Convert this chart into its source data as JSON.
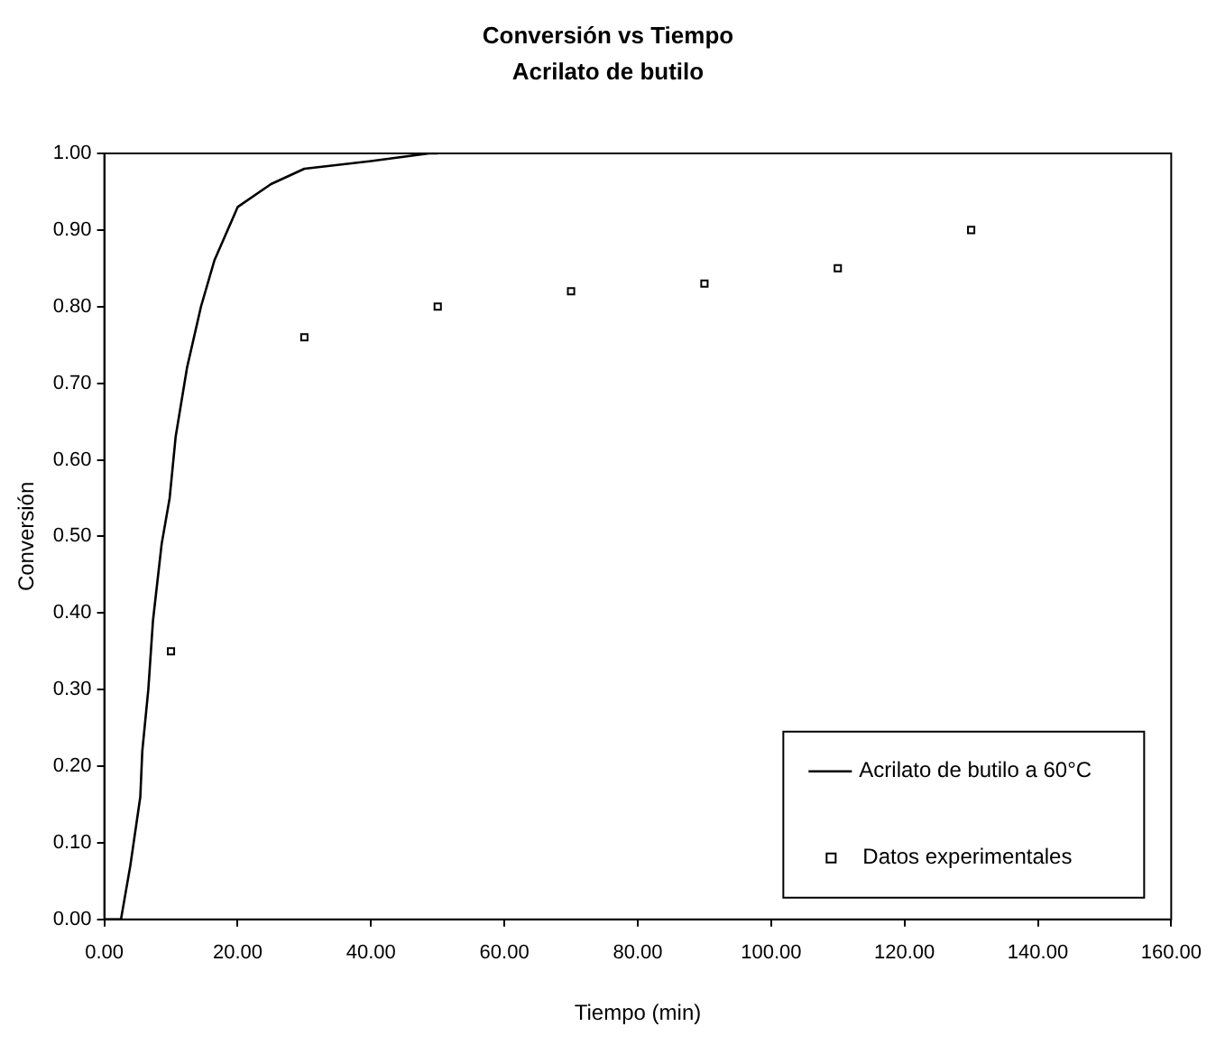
{
  "chart_data": {
    "type": "line",
    "title": "Conversión vs Tiempo",
    "subtitle": "Acrilato de butilo",
    "xlabel": "Tiempo (min)",
    "ylabel": "Conversión",
    "xlim": [
      0,
      160
    ],
    "ylim": [
      0,
      1
    ],
    "xticks": [
      {
        "value": 0,
        "label": "0.00"
      },
      {
        "value": 20,
        "label": "20.00"
      },
      {
        "value": 40,
        "label": "40.00"
      },
      {
        "value": 60,
        "label": "60.00"
      },
      {
        "value": 80,
        "label": "80.00"
      },
      {
        "value": 100,
        "label": "100.00"
      },
      {
        "value": 120,
        "label": "120.00"
      },
      {
        "value": 140,
        "label": "140.00"
      },
      {
        "value": 160,
        "label": "160.00"
      }
    ],
    "yticks": [
      {
        "value": 0,
        "label": "0.00"
      },
      {
        "value": 0.1,
        "label": "0.10"
      },
      {
        "value": 0.2,
        "label": "0.20"
      },
      {
        "value": 0.3,
        "label": "0.30"
      },
      {
        "value": 0.4,
        "label": "0.40"
      },
      {
        "value": 0.5,
        "label": "0.50"
      },
      {
        "value": 0.6,
        "label": "0.60"
      },
      {
        "value": 0.7,
        "label": "0.70"
      },
      {
        "value": 0.8,
        "label": "0.80"
      },
      {
        "value": 0.9,
        "label": "0.90"
      },
      {
        "value": 1,
        "label": "1.00"
      }
    ],
    "grid": false,
    "legend": "bottom right",
    "series": [
      {
        "name": "Acrilato de butilo a 60°C",
        "color": "#000000",
        "marker": "none",
        "line_style": "solid",
        "x": [
          0,
          2.5,
          3.9,
          5.4,
          5.7,
          6.6,
          7.3,
          8.6,
          9.8,
          10.7,
          12.4,
          14.5,
          16.5,
          20,
          25,
          30,
          40,
          48.7,
          50
        ],
        "values": [
          0,
          0,
          0.07,
          0.16,
          0.22,
          0.3,
          0.39,
          0.49,
          0.55,
          0.63,
          0.72,
          0.8,
          0.86,
          0.93,
          0.96,
          0.98,
          0.99,
          1,
          1
        ]
      },
      {
        "name": "Datos experimentales",
        "type": "scatter",
        "color": "#000000",
        "marker": "square",
        "x": [
          10,
          30,
          50,
          70,
          90,
          110,
          130
        ],
        "values": [
          0.35,
          0.76,
          0.8,
          0.82,
          0.83,
          0.85,
          0.9
        ]
      }
    ]
  }
}
